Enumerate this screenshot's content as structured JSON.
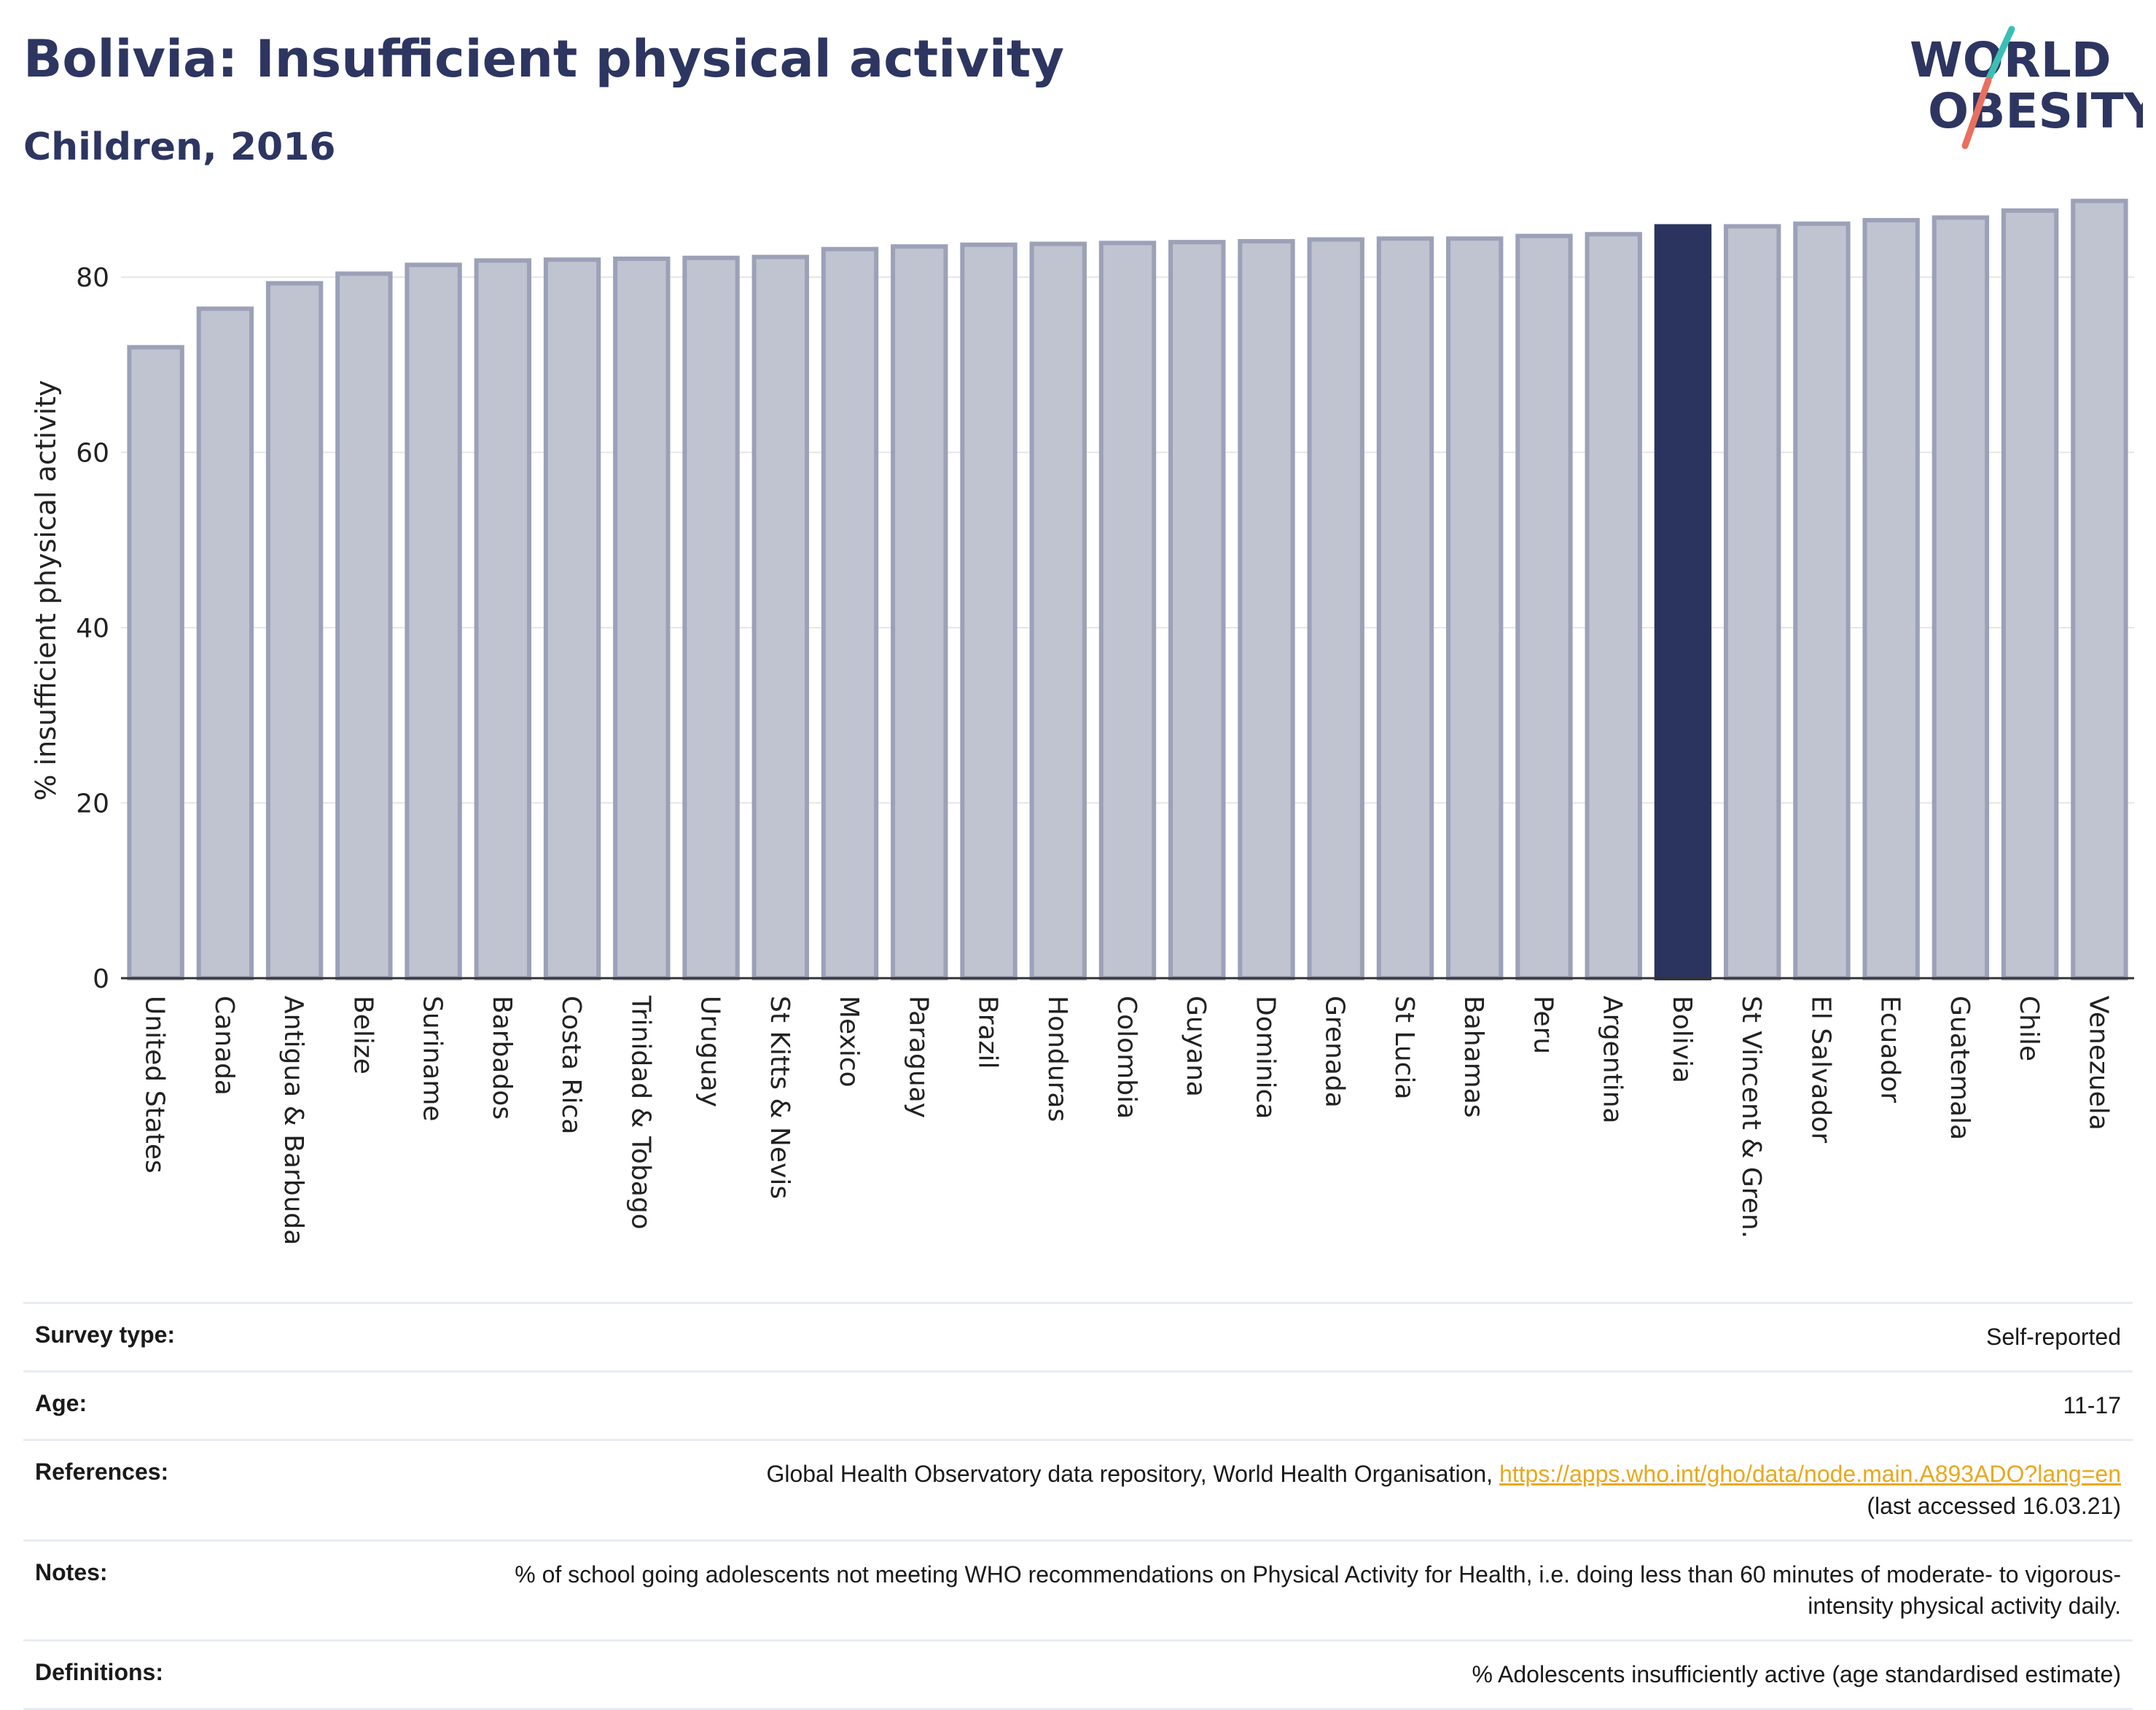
{
  "header": {
    "title": "Bolivia: Insufficient physical activity",
    "subtitle": "Children, 2016"
  },
  "logo": {
    "line1": "WORLD",
    "line2": "OBESITY",
    "colors": {
      "text": "#2d3561",
      "slash_teal": "#3bbfb5",
      "slash_coral": "#e8705e"
    }
  },
  "chart_data": {
    "type": "bar",
    "ylabel": "% insufficient physical activity",
    "xlabel": "",
    "ylim": [
      0,
      90
    ],
    "yticks": [
      0,
      20,
      40,
      60,
      80
    ],
    "grid": true,
    "highlight": "Bolivia",
    "colors": {
      "bar": "#c0c3d0",
      "bar_border": "#9ca1b8",
      "highlight": "#2b345e"
    },
    "categories": [
      "United States",
      "Canada",
      "Antigua & Barbuda",
      "Belize",
      "Suriname",
      "Barbados",
      "Costa Rica",
      "Trinidad & Tobago",
      "Uruguay",
      "St Kitts & Nevis",
      "Mexico",
      "Paraguay",
      "Brazil",
      "Honduras",
      "Colombia",
      "Guyana",
      "Dominica",
      "Grenada",
      "St Lucia",
      "Bahamas",
      "Peru",
      "Argentina",
      "Bolivia",
      "St Vincent & Gren.",
      "El Salvador",
      "Ecuador",
      "Guatemala",
      "Chile",
      "Venezuela"
    ],
    "values": [
      72.0,
      76.4,
      79.3,
      80.4,
      81.4,
      81.9,
      82.0,
      82.1,
      82.2,
      82.3,
      83.2,
      83.5,
      83.7,
      83.8,
      83.9,
      84.0,
      84.1,
      84.3,
      84.4,
      84.4,
      84.7,
      84.9,
      85.8,
      85.8,
      86.1,
      86.5,
      86.8,
      87.6,
      88.7
    ]
  },
  "meta": [
    {
      "label": "Survey type:",
      "value": "Self-reported"
    },
    {
      "label": "Age:",
      "value": "11-17"
    },
    {
      "label": "References:",
      "value": "Global Health Observatory data repository, World Health Organisation, ",
      "link": "https://apps.who.int/gho/data/node.main.A893ADO?lang=en",
      "value2": "(last accessed 16.03.21)"
    },
    {
      "label": "Notes:",
      "value": "% of school going adolescents not meeting WHO recommendations on Physical Activity for Health, i.e. doing less than 60 minutes of moderate- to vigorous-intensity physical activity daily."
    },
    {
      "label": "Definitions:",
      "value": "% Adolescents insufficiently active (age standardised estimate)"
    }
  ]
}
